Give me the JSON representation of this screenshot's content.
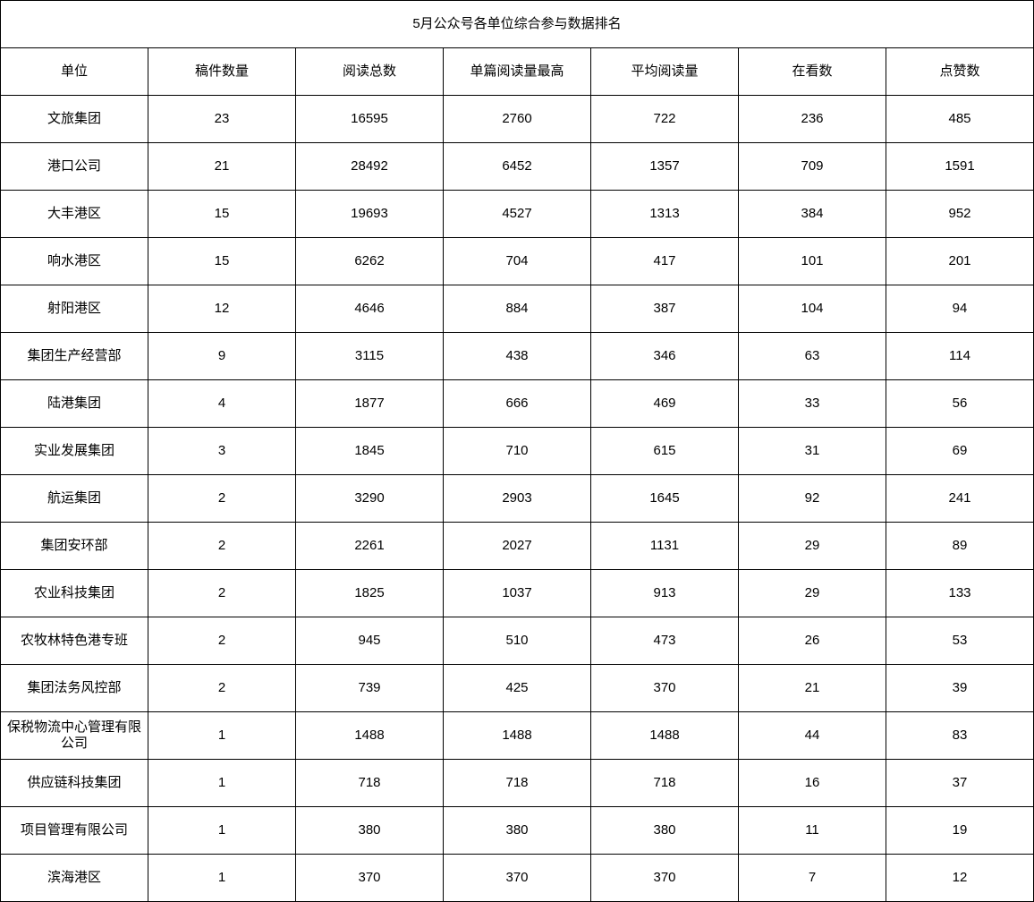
{
  "title": "5月公众号各单位综合参与数据排名",
  "columns": [
    "单位",
    "稿件数量",
    "阅读总数",
    "单篇阅读量最高",
    "平均阅读量",
    "在看数",
    "点赞数"
  ],
  "rows": [
    [
      "文旅集团",
      "23",
      "16595",
      "2760",
      "722",
      "236",
      "485"
    ],
    [
      "港口公司",
      "21",
      "28492",
      "6452",
      "1357",
      "709",
      "1591"
    ],
    [
      "大丰港区",
      "15",
      "19693",
      "4527",
      "1313",
      "384",
      "952"
    ],
    [
      "响水港区",
      "15",
      "6262",
      "704",
      "417",
      "101",
      "201"
    ],
    [
      "射阳港区",
      "12",
      "4646",
      "884",
      "387",
      "104",
      "94"
    ],
    [
      "集团生产经营部",
      "9",
      "3115",
      "438",
      "346",
      "63",
      "114"
    ],
    [
      "陆港集团",
      "4",
      "1877",
      "666",
      "469",
      "33",
      "56"
    ],
    [
      "实业发展集团",
      "3",
      "1845",
      "710",
      "615",
      "31",
      "69"
    ],
    [
      "航运集团",
      "2",
      "3290",
      "2903",
      "1645",
      "92",
      "241"
    ],
    [
      "集团安环部",
      "2",
      "2261",
      "2027",
      "1131",
      "29",
      "89"
    ],
    [
      "农业科技集团",
      "2",
      "1825",
      "1037",
      "913",
      "29",
      "133"
    ],
    [
      "农牧林特色港专班",
      "2",
      "945",
      "510",
      "473",
      "26",
      "53"
    ],
    [
      "集团法务风控部",
      "2",
      "739",
      "425",
      "370",
      "21",
      "39"
    ],
    [
      "保税物流中心管理有限公司",
      "1",
      "1488",
      "1488",
      "1488",
      "44",
      "83"
    ],
    [
      "供应链科技集团",
      "1",
      "718",
      "718",
      "718",
      "16",
      "37"
    ],
    [
      "项目管理有限公司",
      "1",
      "380",
      "380",
      "380",
      "11",
      "19"
    ],
    [
      "滨海港区",
      "1",
      "370",
      "370",
      "370",
      "7",
      "12"
    ]
  ]
}
